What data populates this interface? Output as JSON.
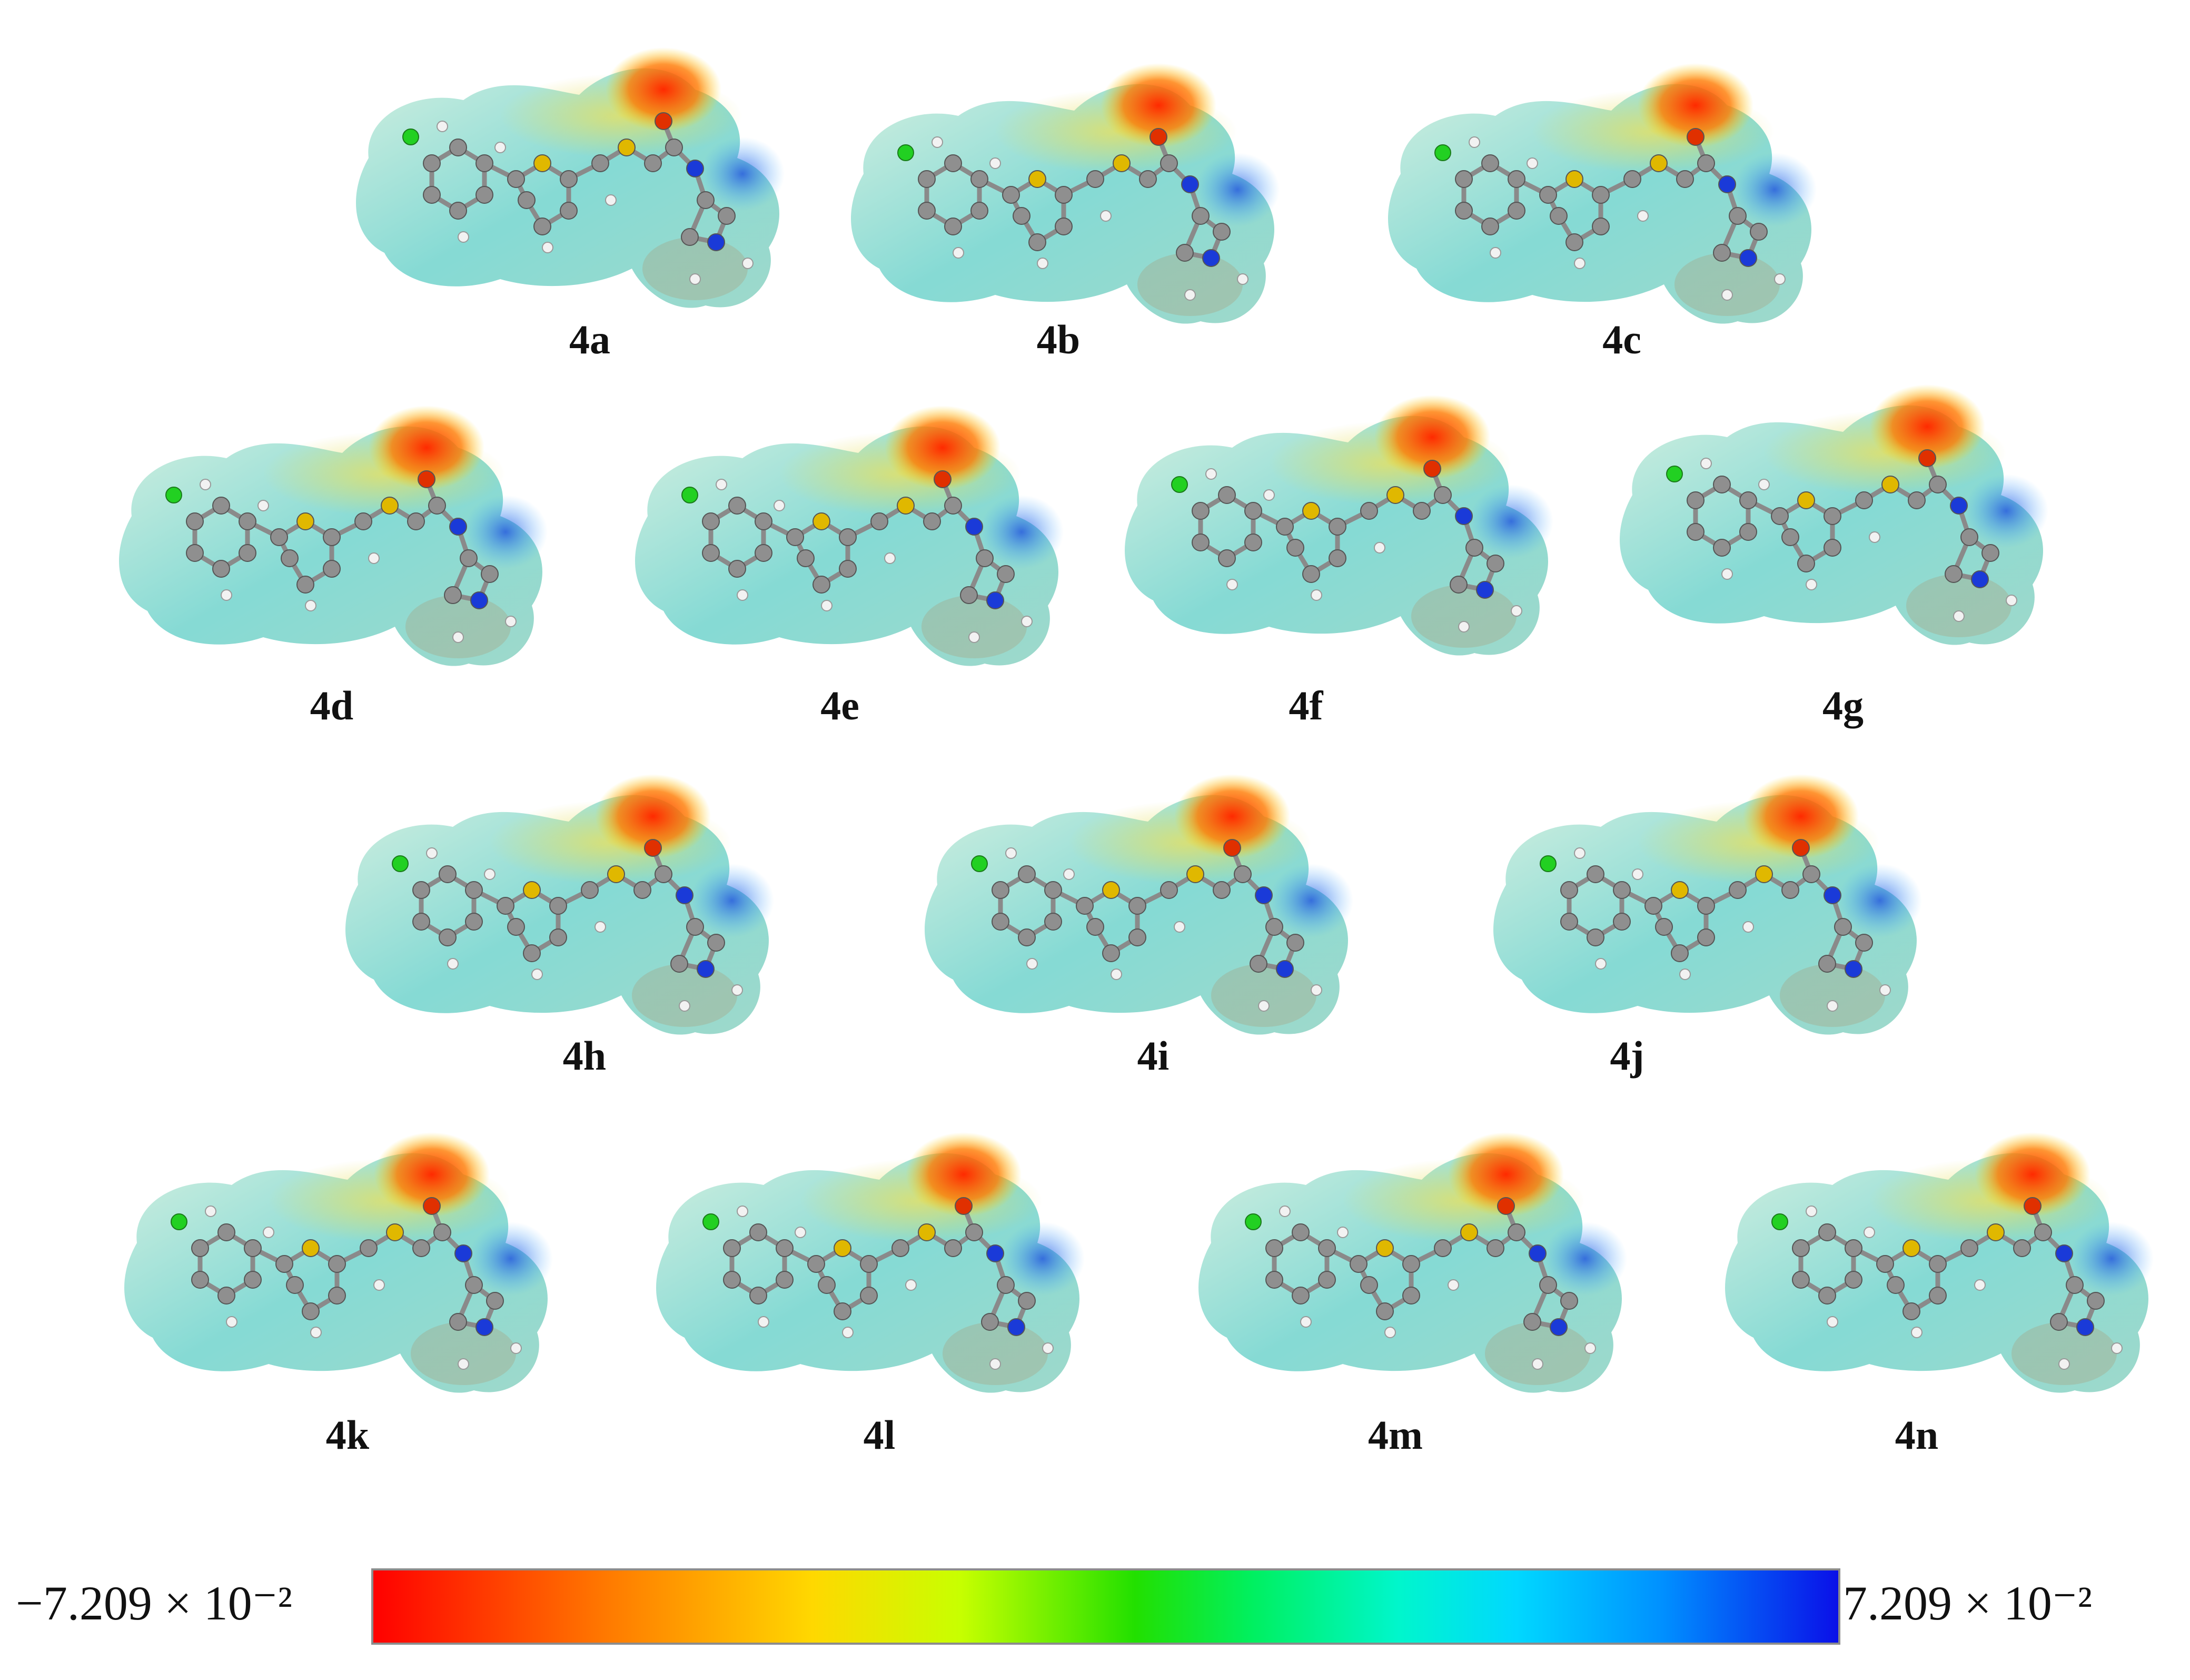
{
  "molecules": [
    {
      "label": "4a"
    },
    {
      "label": "4b"
    },
    {
      "label": "4c"
    },
    {
      "label": "4d"
    },
    {
      "label": "4e"
    },
    {
      "label": "4f"
    },
    {
      "label": "4g"
    },
    {
      "label": "4h"
    },
    {
      "label": "4i"
    },
    {
      "label": "4j"
    },
    {
      "label": "4k"
    },
    {
      "label": "4l"
    },
    {
      "label": "4m"
    },
    {
      "label": "4n"
    }
  ],
  "color_scale": {
    "min_label": "−7.209 × 10⁻²",
    "max_label": "7.209 × 10⁻²",
    "colors": [
      "#ff0000",
      "#ff7a00",
      "#ffd800",
      "#22e000",
      "#00f6cc",
      "#00d8ff",
      "#0a10e8"
    ]
  }
}
